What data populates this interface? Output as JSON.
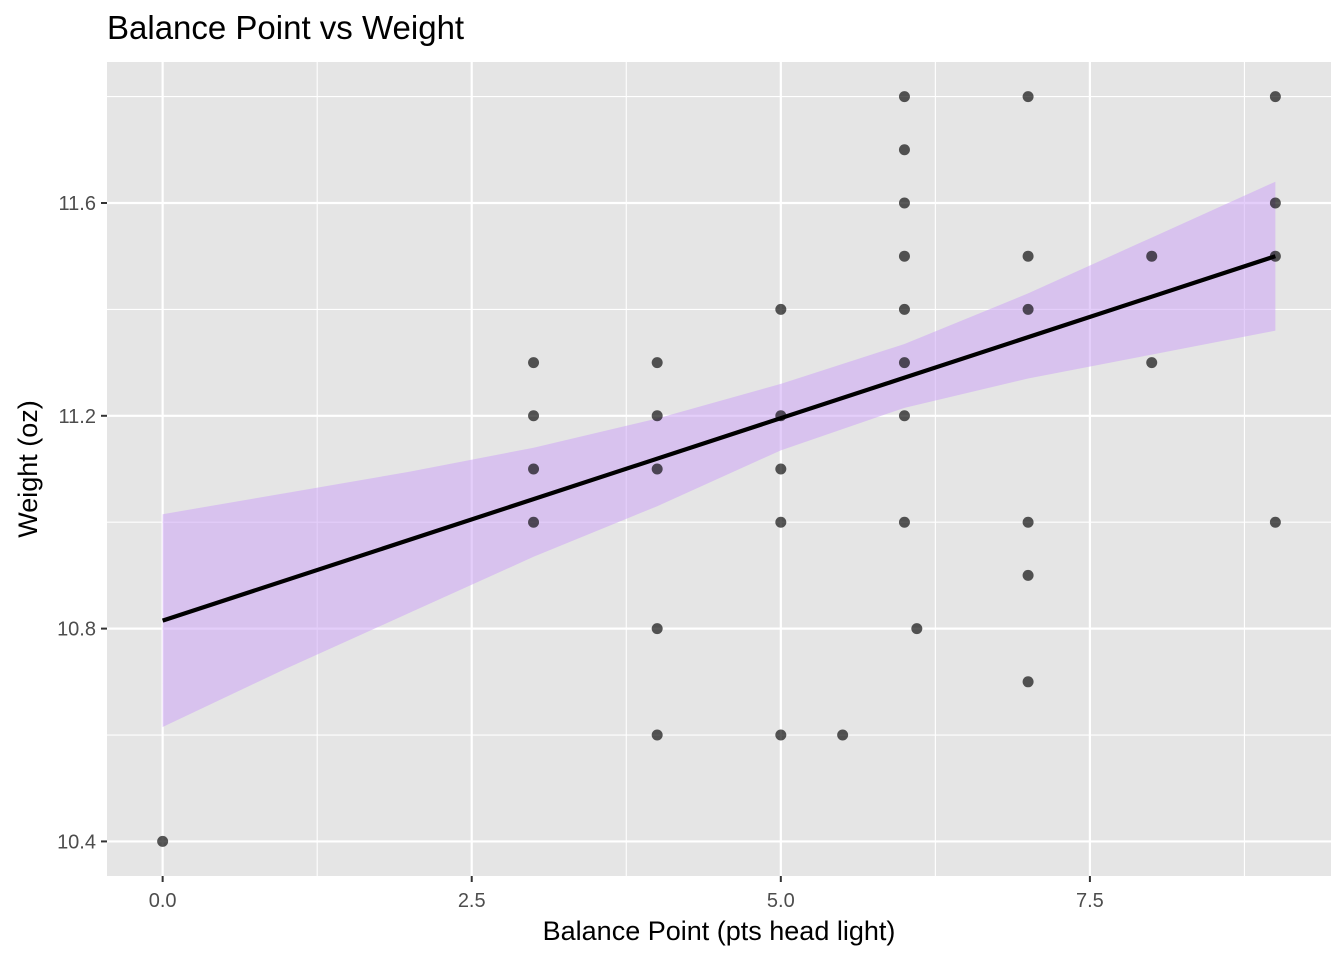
{
  "chart_data": {
    "type": "scatter",
    "title": "Balance Point vs Weight",
    "xlabel": "Balance Point (pts head light)",
    "ylabel": "Weight (oz)",
    "xlim": [
      -0.45,
      9.45
    ],
    "ylim": [
      10.335,
      11.865
    ],
    "x_ticks": [
      0,
      2.5,
      5,
      7.5
    ],
    "x_tick_labels": [
      "0.0",
      "2.5",
      "5.0",
      "7.5"
    ],
    "y_ticks": [
      10.4,
      10.8,
      11.2,
      11.6
    ],
    "y_tick_labels": [
      "10.4",
      "10.8",
      "11.2",
      "11.6"
    ],
    "grid": true,
    "legend": "none",
    "colors": {
      "panel": "#e5e5e5",
      "grid": "#ffffff",
      "points": "#000000",
      "fit_line": "#000000",
      "ribbon": "#cda6f5"
    },
    "points": [
      {
        "x": 0,
        "y": 10.4
      },
      {
        "x": 3,
        "y": 11.3
      },
      {
        "x": 3,
        "y": 11.2
      },
      {
        "x": 3,
        "y": 11.1
      },
      {
        "x": 3,
        "y": 11.0
      },
      {
        "x": 4,
        "y": 11.3
      },
      {
        "x": 4,
        "y": 11.2
      },
      {
        "x": 4,
        "y": 11.1
      },
      {
        "x": 4,
        "y": 10.8
      },
      {
        "x": 4,
        "y": 10.6
      },
      {
        "x": 5,
        "y": 11.4
      },
      {
        "x": 5,
        "y": 11.2
      },
      {
        "x": 5,
        "y": 11.1
      },
      {
        "x": 5,
        "y": 11.0
      },
      {
        "x": 5,
        "y": 10.6
      },
      {
        "x": 5.5,
        "y": 10.6
      },
      {
        "x": 6,
        "y": 11.8
      },
      {
        "x": 6,
        "y": 11.7
      },
      {
        "x": 6,
        "y": 11.6
      },
      {
        "x": 6,
        "y": 11.5
      },
      {
        "x": 6,
        "y": 11.4
      },
      {
        "x": 6,
        "y": 11.3
      },
      {
        "x": 6,
        "y": 11.2
      },
      {
        "x": 6,
        "y": 11.0
      },
      {
        "x": 6.1,
        "y": 10.8
      },
      {
        "x": 7,
        "y": 11.8
      },
      {
        "x": 7,
        "y": 11.5
      },
      {
        "x": 7,
        "y": 11.4
      },
      {
        "x": 7,
        "y": 11.0
      },
      {
        "x": 7,
        "y": 10.9
      },
      {
        "x": 7,
        "y": 10.7
      },
      {
        "x": 8,
        "y": 11.5
      },
      {
        "x": 8,
        "y": 11.3
      },
      {
        "x": 9,
        "y": 11.8
      },
      {
        "x": 9,
        "y": 11.6
      },
      {
        "x": 9,
        "y": 11.5
      },
      {
        "x": 9,
        "y": 11.0
      }
    ],
    "fit_line": {
      "x": [
        0,
        9
      ],
      "y": [
        10.815,
        11.5
      ]
    },
    "confidence_band": {
      "x": [
        0,
        1,
        2,
        3,
        4,
        5,
        6,
        7,
        8,
        9
      ],
      "lower": [
        10.615,
        10.725,
        10.83,
        10.935,
        11.03,
        11.135,
        11.215,
        11.27,
        11.315,
        11.36
      ],
      "upper": [
        11.015,
        11.055,
        11.095,
        11.14,
        11.195,
        11.26,
        11.335,
        11.43,
        11.535,
        11.64
      ]
    }
  }
}
